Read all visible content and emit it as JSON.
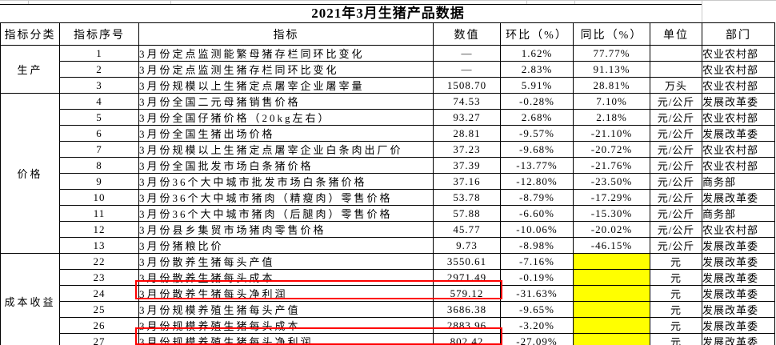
{
  "title": "2021年3月生猪产品数据",
  "table": {
    "headers": [
      "指标分类",
      "指标序号",
      "指标",
      "数值",
      "环比（%）",
      "同比（%）",
      "单位",
      "部门"
    ],
    "rows": [
      {
        "category": {
          "label": "生产",
          "span": 3
        },
        "no": "1",
        "indicator": "3月份定点监测能繁母猪存栏同环比变化",
        "value": "—",
        "mom": "1.62%",
        "yoy": "77.77%",
        "unit": "",
        "dept": "农业农村部"
      },
      {
        "no": "2",
        "indicator": "3月份定点监测生猪存栏同环比变化",
        "value": "—",
        "mom": "2.83%",
        "yoy": "91.13%",
        "unit": "",
        "dept": "农业农村部"
      },
      {
        "no": "3",
        "indicator": "3月份规模以上生猪定点屠宰企业屠宰量",
        "value": "1508.70",
        "mom": "5.91%",
        "yoy": "28.81%",
        "unit": "万头",
        "dept": "农业农村部"
      },
      {
        "category": {
          "label": "价格",
          "span": 10
        },
        "no": "4",
        "indicator": "3月份全国二元母猪销售价格",
        "value": "74.53",
        "mom": "-0.28%",
        "yoy": "7.10%",
        "unit": "元/公斤",
        "dept": "发展改革委"
      },
      {
        "no": "5",
        "indicator": "3月份全国仔猪价格（20kg左右）",
        "value": "93.27",
        "mom": "2.68%",
        "yoy": "2.18%",
        "unit": "元/公斤",
        "dept": "农业农村部"
      },
      {
        "no": "6",
        "indicator": "3月份全国生猪出场价格",
        "value": "28.81",
        "mom": "-9.57%",
        "yoy": "-21.10%",
        "unit": "元/公斤",
        "dept": "发展改革委"
      },
      {
        "no": "7",
        "indicator": "3月份规模以上生猪定点屠宰企业白条肉出厂价",
        "value": "37.23",
        "mom": "-9.68%",
        "yoy": "-20.72%",
        "unit": "元/公斤",
        "dept": "农业农村部"
      },
      {
        "no": "8",
        "indicator": "3月份全国批发市场白条猪价格",
        "value": "37.39",
        "mom": "-13.77%",
        "yoy": "-21.76%",
        "unit": "元/公斤",
        "dept": "农业农村部"
      },
      {
        "no": "9",
        "indicator": "3月份36个大中城市批发市场白条猪价格",
        "value": "37.16",
        "mom": "-12.80%",
        "yoy": "-23.50%",
        "unit": "元/公斤",
        "dept": "商务部"
      },
      {
        "no": "10",
        "indicator": "3月份36个大中城市猪肉（精瘦肉）零售价格",
        "value": "53.78",
        "mom": "-8.79%",
        "yoy": "-17.29%",
        "unit": "元/公斤",
        "dept": "发展改革委"
      },
      {
        "no": "11",
        "indicator": "3月份36个大中城市猪肉（后腿肉）零售价格",
        "value": "57.88",
        "mom": "-6.60%",
        "yoy": "-15.30%",
        "unit": "元/公斤",
        "dept": "商务部"
      },
      {
        "no": "12",
        "indicator": "3月份县乡集贸市场猪肉零售价格",
        "value": "45.77",
        "mom": "-10.06%",
        "yoy": "-20.02%",
        "unit": "元/公斤",
        "dept": "农业农村部"
      },
      {
        "no": "13",
        "indicator": "3月份猪粮比价",
        "value": "9.73",
        "mom": "-8.98%",
        "yoy": "-46.15%",
        "unit": "元/公斤",
        "dept": "发展改革委"
      },
      {
        "category": {
          "label": "成本收益",
          "span": 6
        },
        "no": "22",
        "indicator": "3月份散养生猪每头产值",
        "value": "3550.61",
        "mom": "-7.16%",
        "yoy": "",
        "yoy_yellow": true,
        "unit": "元",
        "dept": "发展改革委"
      },
      {
        "no": "23",
        "indicator": "3月份散养生猪每头成本",
        "value": "2971.49",
        "mom": "-0.19%",
        "yoy": "",
        "yoy_yellow": true,
        "unit": "元",
        "dept": "发展改革委"
      },
      {
        "no": "24",
        "indicator": "3月份散养生猪每头净利润",
        "value": "579.12",
        "mom": "-31.63%",
        "yoy": "",
        "yoy_yellow": true,
        "unit": "元",
        "dept": "发展改革委",
        "red_box": true
      },
      {
        "no": "25",
        "indicator": "3月份规模养殖生猪每头产值",
        "value": "3686.38",
        "mom": "-9.65%",
        "yoy": "",
        "yoy_yellow": true,
        "unit": "元",
        "dept": "发展改革委"
      },
      {
        "no": "26",
        "indicator": "3月份规模养殖生猪每头成本",
        "value": "2883.96",
        "mom": "-3.20%",
        "yoy": "",
        "yoy_yellow": true,
        "unit": "元",
        "dept": "发展改革委"
      },
      {
        "no": "27",
        "indicator": "3月份规模养殖生猪每头净利润",
        "value": "802.42",
        "mom": "-27.09%",
        "yoy": "",
        "yoy_yellow": true,
        "unit": "元",
        "dept": "发展改革委",
        "red_box": true
      }
    ]
  },
  "annotations": {
    "red_box_color": "#ff0000",
    "yellow_fill": "#ffff00",
    "red_boxed_rows": [
      "24",
      "27"
    ],
    "yellow_yoy_rows": [
      "22",
      "23",
      "24",
      "25",
      "26",
      "27"
    ]
  }
}
